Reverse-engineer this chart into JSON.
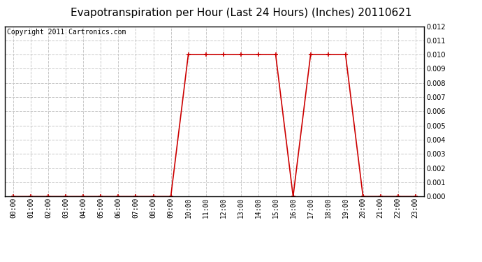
{
  "title": "Evapotranspiration per Hour (Last 24 Hours) (Inches) 20110621",
  "copyright": "Copyright 2011 Cartronics.com",
  "hours": [
    "00:00",
    "01:00",
    "02:00",
    "03:00",
    "04:00",
    "05:00",
    "06:00",
    "07:00",
    "08:00",
    "09:00",
    "10:00",
    "11:00",
    "12:00",
    "13:00",
    "14:00",
    "15:00",
    "16:00",
    "17:00",
    "18:00",
    "19:00",
    "20:00",
    "21:00",
    "22:00",
    "23:00"
  ],
  "values": [
    0.0,
    0.0,
    0.0,
    0.0,
    0.0,
    0.0,
    0.0,
    0.0,
    0.0,
    0.0,
    0.01,
    0.01,
    0.01,
    0.01,
    0.01,
    0.01,
    0.0,
    0.01,
    0.01,
    0.01,
    0.0,
    0.0,
    0.0,
    0.0
  ],
  "line_color": "#cc0000",
  "marker_color": "#cc0000",
  "bg_color": "#ffffff",
  "grid_color": "#c8c8c8",
  "ylim": [
    0,
    0.012
  ],
  "yticks": [
    0.0,
    0.001,
    0.002,
    0.003,
    0.004,
    0.005,
    0.006,
    0.007,
    0.008,
    0.009,
    0.01,
    0.011,
    0.012
  ],
  "title_fontsize": 11,
  "copyright_fontsize": 7,
  "tick_fontsize": 7
}
